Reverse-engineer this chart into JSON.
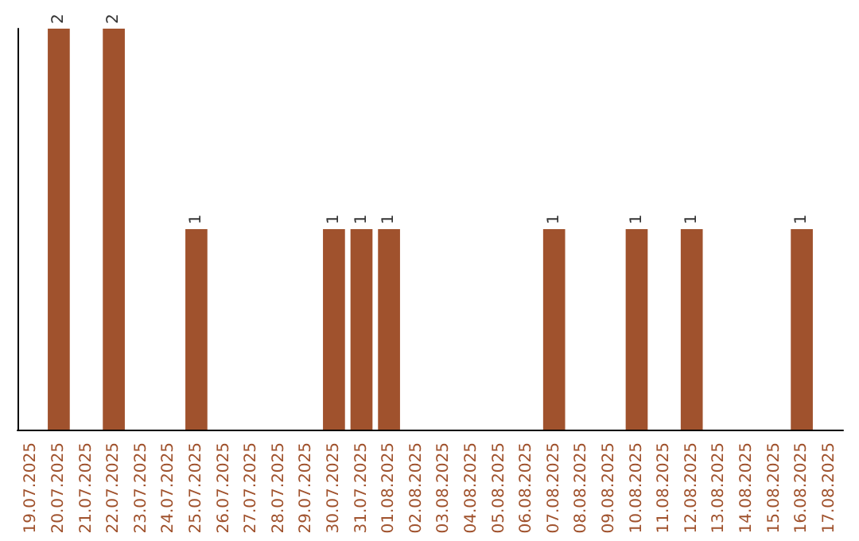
{
  "chart_data": {
    "type": "bar",
    "categories": [
      "19.07.2025",
      "20.07.2025",
      "21.07.2025",
      "22.07.2025",
      "23.07.2025",
      "24.07.2025",
      "25.07.2025",
      "26.07.2025",
      "27.07.2025",
      "28.07.2025",
      "29.07.2025",
      "30.07.2025",
      "31.07.2025",
      "01.08.2025",
      "02.08.2025",
      "03.08.2025",
      "04.08.2025",
      "05.08.2025",
      "06.08.2025",
      "07.08.2025",
      "08.08.2025",
      "09.08.2025",
      "10.08.2025",
      "11.08.2025",
      "12.08.2025",
      "13.08.2025",
      "14.08.2025",
      "15.08.2025",
      "16.08.2025",
      "17.08.2025"
    ],
    "values": [
      0,
      2,
      0,
      2,
      0,
      0,
      1,
      0,
      0,
      0,
      0,
      1,
      1,
      1,
      0,
      0,
      0,
      0,
      0,
      1,
      0,
      0,
      1,
      0,
      1,
      0,
      0,
      0,
      1,
      0
    ],
    "value_labels": [
      null,
      "2",
      null,
      "2",
      null,
      null,
      "1",
      null,
      null,
      null,
      null,
      "1",
      "1",
      "1",
      null,
      null,
      null,
      null,
      null,
      "1",
      null,
      null,
      "1",
      null,
      "1",
      null,
      null,
      null,
      "1",
      null
    ],
    "color": "#a0522d",
    "tick_labels": "x"
  }
}
